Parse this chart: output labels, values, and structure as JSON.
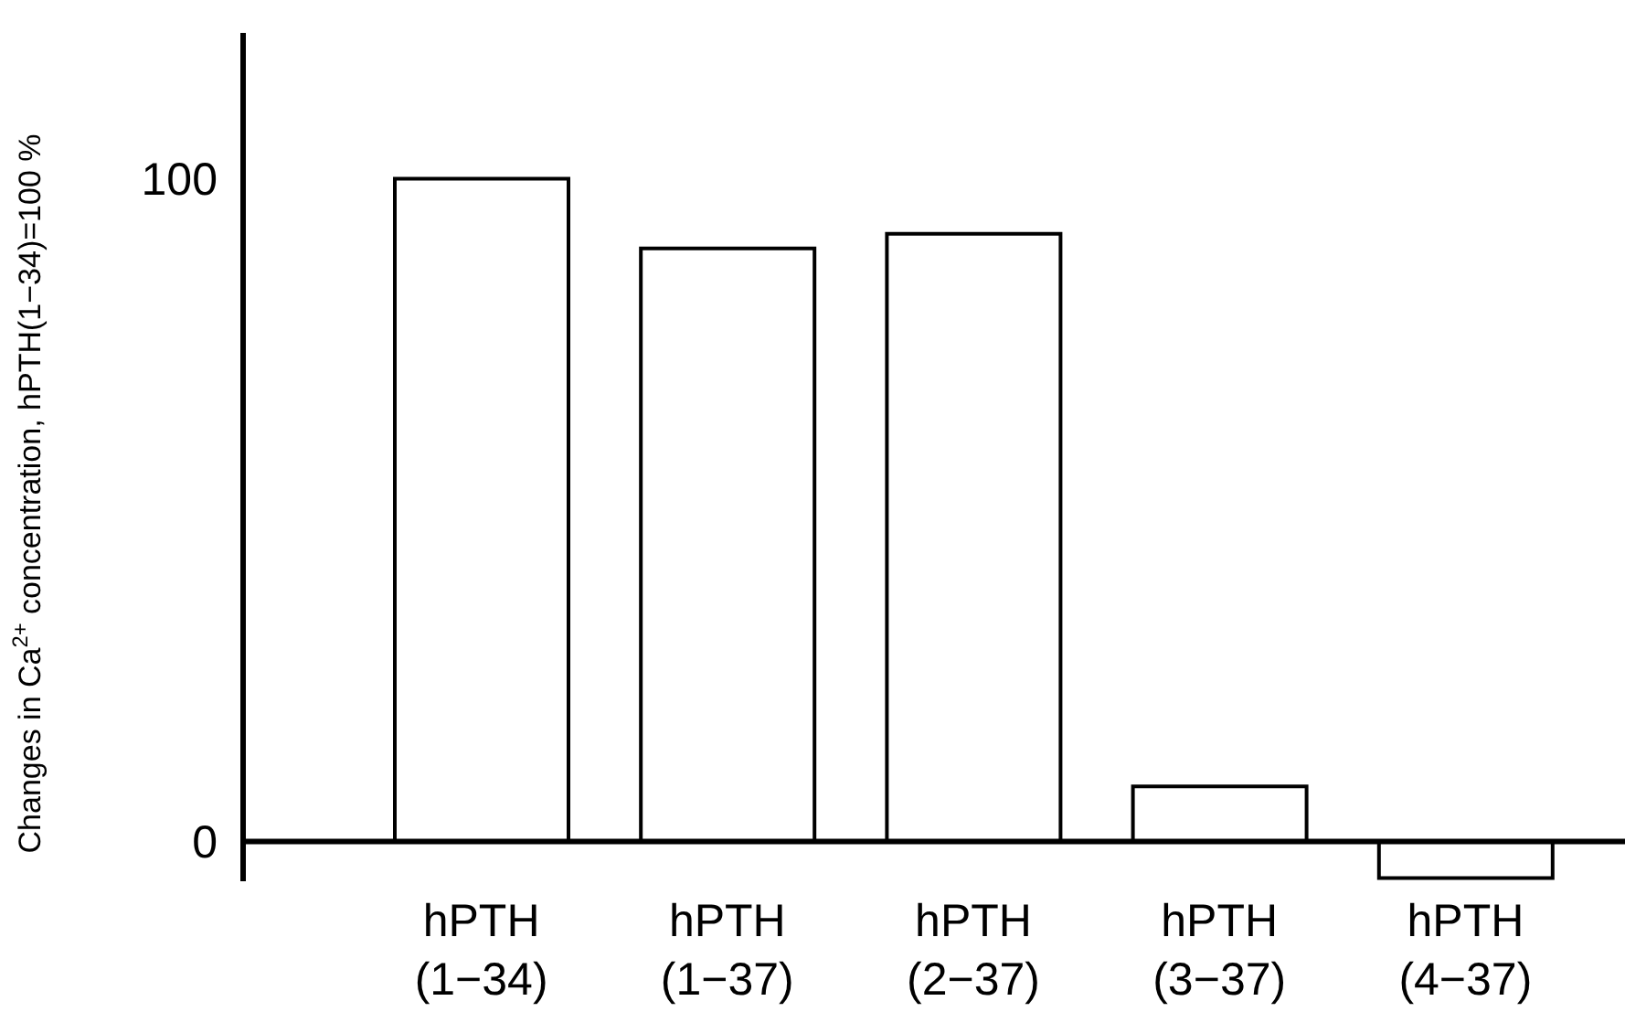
{
  "chart_data": {
    "type": "bar",
    "ylabel": "Changes in Ca$^{2+}$ concentration, hPTH(1−34)=100 %",
    "categories": [
      "hPTH\n(1−34)",
      "hPTH\n(1−37)",
      "hPTH\n(2−37)",
      "hPTH\n(3−37)",
      "hPTH\n(4−37)"
    ],
    "values": [
      100,
      89.5,
      91.7,
      8.3,
      -5.5
    ],
    "color": "#ffffff",
    "ylim": [
      -6,
      122
    ],
    "yticks": [
      0,
      100
    ]
  }
}
